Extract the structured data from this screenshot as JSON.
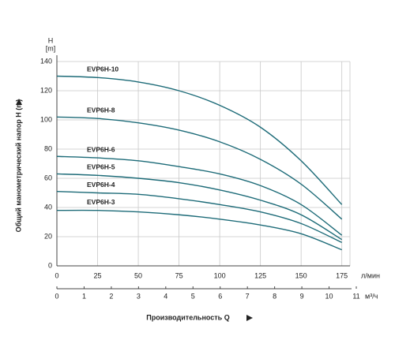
{
  "chart_data": {
    "type": "line",
    "y_label": "Общий манометрический напор H (m)",
    "y_unit_symbol": "H",
    "y_unit": "[m]",
    "x_label": "Производительность Q",
    "x_unit": "л/мин",
    "x2_unit": "м³/ч",
    "x": [
      0,
      25,
      50,
      75,
      100,
      125,
      150,
      175
    ],
    "xlim": [
      0,
      180
    ],
    "xticks": [
      0,
      25,
      50,
      75,
      100,
      125,
      150,
      175
    ],
    "x2lim": [
      0,
      11
    ],
    "x2ticks": [
      0,
      1,
      2,
      3,
      4,
      5,
      6,
      7,
      8,
      9,
      10,
      11
    ],
    "ylim": [
      0,
      140
    ],
    "yticks": [
      0,
      20,
      40,
      60,
      80,
      100,
      120,
      140
    ],
    "grid": true,
    "series": [
      {
        "name": "EVP6H-10",
        "color": "#1d6b78",
        "values": [
          130,
          129,
          126,
          120,
          110,
          95,
          72,
          42
        ]
      },
      {
        "name": "EVP6H-8",
        "color": "#1d6b78",
        "values": [
          102,
          101,
          98,
          93,
          85,
          73,
          56,
          32
        ]
      },
      {
        "name": "EVP6H-6",
        "color": "#1d6b78",
        "values": [
          75,
          74,
          72,
          68,
          63,
          55,
          42,
          21
        ]
      },
      {
        "name": "EVP6H-5",
        "color": "#1d6b78",
        "values": [
          63,
          62,
          60,
          57,
          52,
          45,
          35,
          18
        ]
      },
      {
        "name": "EVP6H-4",
        "color": "#1d6b78",
        "values": [
          51,
          50,
          49,
          46,
          42,
          37,
          29,
          16
        ]
      },
      {
        "name": "EVP6H-3",
        "color": "#1d6b78",
        "values": [
          38,
          38,
          37,
          35,
          32,
          28,
          22,
          11
        ]
      }
    ]
  }
}
